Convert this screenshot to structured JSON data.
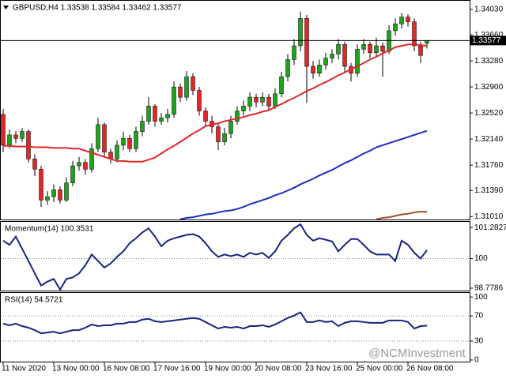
{
  "chart_data": [
    {
      "type": "candlestick",
      "title": "GBPUSD,H4  1.33538 1.33584 1.33462 1.33577",
      "categories": [
        "11 Nov 2020",
        null,
        null,
        null,
        null,
        null,
        null,
        null,
        "13 Nov 00:00",
        null,
        null,
        null,
        null,
        null,
        null,
        null,
        "16 Nov 08:00",
        null,
        null,
        null,
        null,
        null,
        null,
        null,
        "17 Nov 16:00",
        null,
        null,
        null,
        null,
        null,
        null,
        null,
        "19 Nov 00:00",
        null,
        null,
        null,
        null,
        null,
        null,
        null,
        "20 Nov 08:00",
        null,
        null,
        null,
        null,
        null,
        null,
        null,
        "23 Nov 16:00",
        null,
        null,
        null,
        null,
        null,
        null,
        null,
        "25 Nov 00:00",
        null,
        null,
        null,
        null,
        null,
        null,
        null,
        "26 Nov 08:00",
        null,
        null,
        null
      ],
      "open": [
        1.325,
        1.3205,
        1.322,
        1.3215,
        1.3225,
        1.3185,
        1.317,
        1.3125,
        1.313,
        1.314,
        1.3125,
        1.315,
        1.3175,
        1.318,
        1.317,
        1.32,
        1.3235,
        1.3195,
        1.3185,
        1.3205,
        1.3215,
        1.32,
        1.3225,
        1.324,
        1.3262,
        1.324,
        1.3245,
        1.325,
        1.329,
        1.3275,
        1.3305,
        1.3285,
        1.3255,
        1.324,
        1.3232,
        1.321,
        1.3222,
        1.324,
        1.3255,
        1.3262,
        1.3275,
        1.3268,
        1.3275,
        1.3262,
        1.328,
        1.3305,
        1.333,
        1.335,
        1.339,
        1.332,
        1.331,
        1.3322,
        1.3332,
        1.3338,
        1.3352,
        1.332,
        1.331,
        1.3345,
        1.3352,
        1.334,
        1.335,
        1.3342,
        1.3372,
        1.3382,
        1.3392,
        1.3385,
        1.335,
        1.33538
      ],
      "high": [
        1.3258,
        1.3228,
        1.3226,
        1.323,
        1.3228,
        1.3192,
        1.3175,
        1.3138,
        1.3148,
        1.3145,
        1.3158,
        1.3182,
        1.3188,
        1.3185,
        1.3208,
        1.3245,
        1.3238,
        1.32,
        1.3212,
        1.3225,
        1.322,
        1.3232,
        1.3248,
        1.3275,
        1.3265,
        1.3252,
        1.3258,
        1.3298,
        1.3295,
        1.3313,
        1.331,
        1.329,
        1.326,
        1.3248,
        1.3238,
        1.323,
        1.3248,
        1.3262,
        1.327,
        1.3282,
        1.328,
        1.3282,
        1.328,
        1.3288,
        1.3312,
        1.3338,
        1.336,
        1.34,
        1.3395,
        1.3328,
        1.333,
        1.334,
        1.3345,
        1.336,
        1.3356,
        1.3325,
        1.3352,
        1.336,
        1.3356,
        1.3362,
        1.3355,
        1.338,
        1.339,
        1.3398,
        1.3396,
        1.339,
        1.3356,
        1.33584
      ],
      "low": [
        1.3195,
        1.32,
        1.3208,
        1.321,
        1.318,
        1.316,
        1.3115,
        1.3118,
        1.3122,
        1.312,
        1.3122,
        1.3145,
        1.3168,
        1.3162,
        1.3165,
        1.3195,
        1.3188,
        1.3178,
        1.318,
        1.3198,
        1.3195,
        1.3195,
        1.3218,
        1.3235,
        1.3232,
        1.3235,
        1.3238,
        1.3245,
        1.3268,
        1.327,
        1.3278,
        1.3248,
        1.3232,
        1.3222,
        1.3198,
        1.3205,
        1.3215,
        1.3235,
        1.3248,
        1.3255,
        1.326,
        1.3262,
        1.3255,
        1.3258,
        1.3275,
        1.3298,
        1.3322,
        1.3342,
        1.3267,
        1.3302,
        1.3305,
        1.3315,
        1.3325,
        1.333,
        1.3312,
        1.3298,
        1.3305,
        1.3338,
        1.3332,
        1.3335,
        1.3305,
        1.3338,
        1.3365,
        1.3375,
        1.3378,
        1.3342,
        1.3325,
        1.33462
      ],
      "close": [
        1.3205,
        1.322,
        1.3215,
        1.3225,
        1.3185,
        1.317,
        1.3125,
        1.313,
        1.314,
        1.3125,
        1.315,
        1.3175,
        1.318,
        1.317,
        1.32,
        1.3235,
        1.3195,
        1.3185,
        1.3205,
        1.3215,
        1.32,
        1.3225,
        1.324,
        1.3262,
        1.324,
        1.3245,
        1.325,
        1.329,
        1.3275,
        1.3305,
        1.3285,
        1.3255,
        1.324,
        1.3232,
        1.321,
        1.3222,
        1.324,
        1.3255,
        1.3262,
        1.3275,
        1.3268,
        1.3275,
        1.3262,
        1.328,
        1.3305,
        1.333,
        1.335,
        1.339,
        1.332,
        1.331,
        1.3322,
        1.3332,
        1.3338,
        1.3352,
        1.332,
        1.331,
        1.3345,
        1.3352,
        1.334,
        1.335,
        1.3342,
        1.3372,
        1.3382,
        1.3392,
        1.3385,
        1.335,
        1.3336,
        1.33577
      ],
      "up_color": "#1fa31f",
      "down_color": "#e3262a",
      "series": [
        {
          "color": "#e3262a",
          "values": [
            1.3204,
            1.3204,
            1.3203,
            1.3203,
            1.3203,
            1.3202,
            1.3202,
            1.3202,
            1.3201,
            1.3201,
            1.3201,
            1.32,
            1.32,
            1.3197,
            1.3194,
            1.3191,
            1.3188,
            1.3185,
            1.3182,
            1.3182,
            1.3181,
            1.3181,
            1.3181,
            1.3184,
            1.3187,
            1.3193,
            1.3199,
            1.3204,
            1.321,
            1.3216,
            1.3222,
            1.3227,
            1.3233,
            1.3235,
            1.3237,
            1.324,
            1.3242,
            1.3244,
            1.3246,
            1.3249,
            1.3251,
            1.3254,
            1.3256,
            1.3261,
            1.3265,
            1.327,
            1.3274,
            1.3279,
            1.3284,
            1.3288,
            1.3293,
            1.3297,
            1.3302,
            1.3307,
            1.3311,
            1.3316,
            1.332,
            1.3325,
            1.333,
            1.3334,
            1.3339,
            1.3343,
            1.3348,
            1.335,
            1.3352,
            1.3352,
            1.3351,
            1.335
          ]
        },
        {
          "color": "#1e2dbe",
          "values": [
            null,
            null,
            null,
            null,
            null,
            null,
            null,
            null,
            null,
            null,
            null,
            null,
            null,
            null,
            null,
            null,
            null,
            null,
            null,
            null,
            null,
            null,
            null,
            null,
            null,
            null,
            null,
            null,
            1.3097,
            1.3099,
            1.31,
            1.3102,
            1.3104,
            1.3105,
            1.3107,
            1.3109,
            1.311,
            1.3112,
            1.3115,
            1.3119,
            1.3122,
            1.3125,
            1.3128,
            1.3132,
            1.3135,
            1.3139,
            1.3143,
            1.3148,
            1.3152,
            1.3156,
            1.3161,
            1.3165,
            1.3169,
            1.3174,
            1.3179,
            1.3183,
            1.3188,
            1.3193,
            1.3197,
            1.3202,
            1.3205,
            1.3208,
            1.3211,
            1.3214,
            1.3217,
            1.322,
            1.3223,
            1.3226
          ]
        },
        {
          "color": "#a0522d",
          "values": [
            null,
            null,
            null,
            null,
            null,
            null,
            null,
            null,
            null,
            null,
            null,
            null,
            null,
            null,
            null,
            null,
            null,
            null,
            null,
            null,
            null,
            null,
            null,
            null,
            null,
            null,
            null,
            null,
            null,
            null,
            null,
            null,
            null,
            null,
            null,
            null,
            null,
            null,
            null,
            null,
            null,
            null,
            null,
            null,
            null,
            null,
            null,
            null,
            null,
            null,
            null,
            null,
            null,
            null,
            null,
            null,
            null,
            null,
            null,
            1.3097,
            1.3099,
            1.31,
            1.3102,
            1.3104,
            1.3105,
            1.3107,
            1.3108,
            1.3108
          ]
        }
      ],
      "ylim": [
        1.30967,
        1.34168
      ],
      "yticks": [
        {
          "value": 1.3403,
          "label": "1.34030"
        },
        {
          "value": 1.3366,
          "label": "1.33660"
        },
        {
          "value": 1.3328,
          "label": "1.33280"
        },
        {
          "value": 1.329,
          "label": "1.32900"
        },
        {
          "value": 1.3252,
          "label": "1.32520"
        },
        {
          "value": 1.3214,
          "label": "1.32140"
        },
        {
          "value": 1.3176,
          "label": "1.31760"
        },
        {
          "value": 1.3139,
          "label": "1.31390"
        },
        {
          "value": 1.3101,
          "label": "1.31010"
        }
      ],
      "last_price": 1.33577
    },
    {
      "type": "line",
      "title": "Momentum(14) 100.3531",
      "color": "#1a237e",
      "values": [
        100.74,
        100.57,
        100.91,
        100.41,
        99.9,
        99.39,
        98.89,
        99.05,
        99.16,
        98.72,
        99.16,
        99.22,
        99.39,
        99.73,
        100.17,
        99.9,
        99.63,
        99.8,
        100.07,
        100.3,
        100.64,
        100.84,
        101.08,
        101.25,
        100.91,
        100.51,
        100.74,
        100.84,
        100.91,
        100.98,
        101.01,
        100.91,
        100.64,
        100.3,
        100.07,
        100.17,
        100.1,
        100.17,
        100.07,
        100.24,
        100.17,
        100.24,
        100.03,
        100.3,
        100.74,
        100.98,
        101.25,
        101.42,
        100.98,
        100.74,
        100.84,
        100.78,
        100.71,
        100.3,
        100.57,
        100.81,
        100.81,
        100.57,
        100.3,
        100.17,
        100.17,
        100.17,
        99.9,
        100.74,
        100.57,
        100.24,
        100.0,
        100.3531
      ],
      "ylim": [
        98.68,
        101.55
      ],
      "yticks": [
        101.2827,
        100,
        98.7786
      ],
      "levels": [
        100
      ]
    },
    {
      "type": "line",
      "title": "RSI(14) 54.5721",
      "color": "#1a237e",
      "values": [
        57.7,
        55.1,
        57.7,
        53.8,
        51.3,
        47.4,
        42.3,
        43.6,
        44.9,
        42.3,
        44.9,
        47.4,
        47.4,
        51.3,
        56.4,
        53.8,
        55.1,
        55.1,
        57.7,
        57.7,
        60.3,
        60.3,
        64.1,
        65.4,
        61.5,
        60.3,
        61.5,
        62.8,
        64.1,
        65.4,
        66.7,
        65.4,
        60.3,
        55.1,
        50.0,
        52.6,
        51.3,
        52.6,
        50.0,
        53.8,
        53.8,
        55.1,
        52.6,
        56.4,
        61.5,
        66.7,
        70.5,
        75.6,
        60.3,
        60.3,
        62.8,
        60.3,
        61.5,
        53.8,
        59.0,
        61.5,
        61.5,
        60.3,
        59.0,
        59.0,
        59.0,
        62.8,
        62.8,
        62.8,
        60.3,
        50.0,
        53.8,
        54.5721
      ],
      "ylim": [
        -2.6,
        107.7
      ],
      "yticks": [
        100,
        70,
        30,
        0
      ],
      "levels": [
        70,
        30
      ]
    }
  ],
  "watermark": "@NCMInvestment"
}
